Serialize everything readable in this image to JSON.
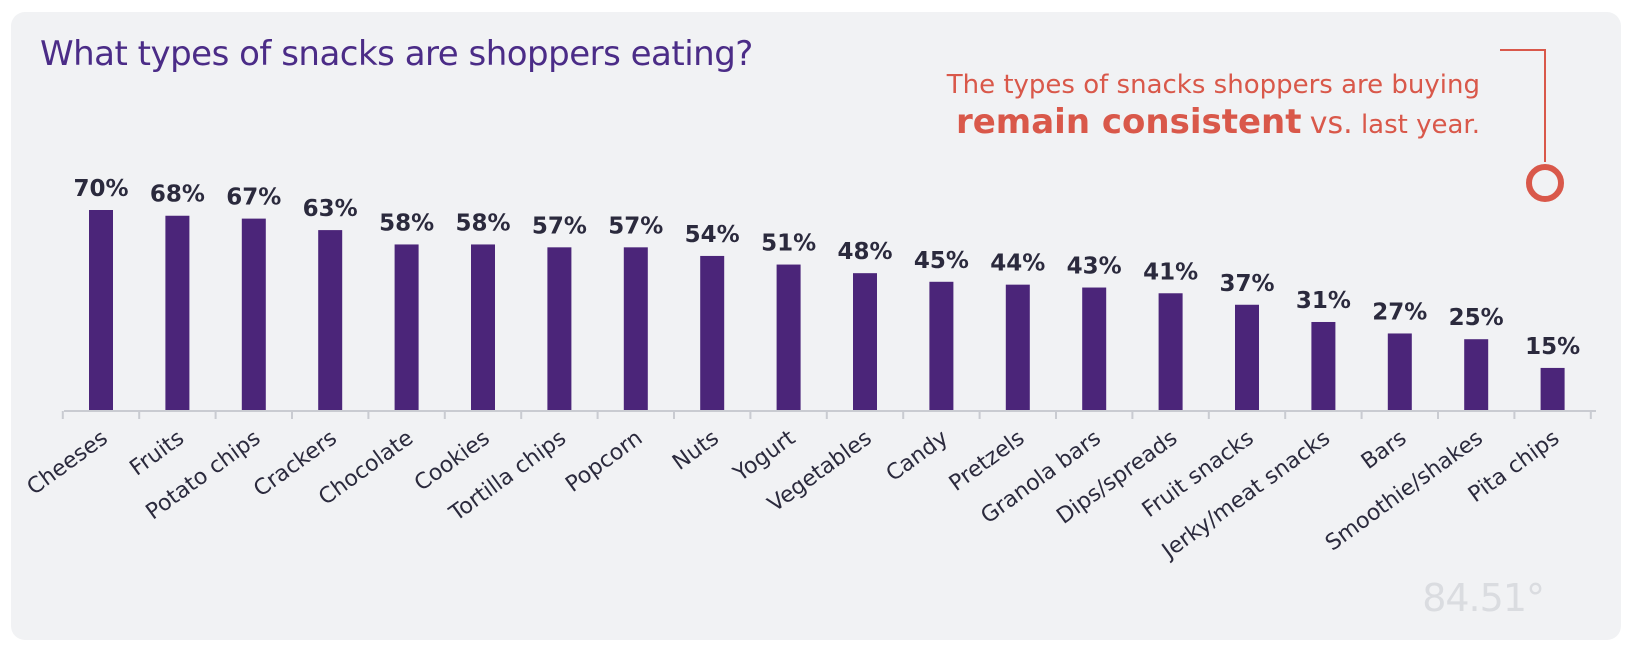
{
  "chart_data": {
    "type": "bar",
    "title": "What types of snacks are shoppers eating?",
    "categories": [
      "Cheeses",
      "Fruits",
      "Potato chips",
      "Crackers",
      "Chocolate",
      "Cookies",
      "Tortilla chips",
      "Popcorn",
      "Nuts",
      "Yogurt",
      "Vegetables",
      "Candy",
      "Pretzels",
      "Granola bars",
      "Dips/spreads",
      "Fruit snacks",
      "Jerky/meat snacks",
      "Bars",
      "Smoothie/shakes",
      "Pita chips"
    ],
    "values": [
      70,
      68,
      67,
      63,
      58,
      58,
      57,
      57,
      54,
      51,
      48,
      45,
      44,
      43,
      41,
      37,
      31,
      27,
      25,
      15
    ],
    "value_labels": [
      "70%",
      "68%",
      "67%",
      "63%",
      "58%",
      "58%",
      "57%",
      "57%",
      "54%",
      "51%",
      "48%",
      "45%",
      "44%",
      "43%",
      "41%",
      "37%",
      "31%",
      "27%",
      "25%",
      "15%"
    ],
    "ylim": [
      0,
      70
    ],
    "grid": false,
    "legend": "none",
    "bar_color": "#4b2579",
    "axis_color": "#c9cbd1"
  },
  "callout": {
    "line1": "The types of snacks shoppers are buying",
    "strong": "remain consistent",
    "vs": "vs.",
    "tail": "last year.",
    "color": "#d9584a"
  },
  "logo": {
    "text": "84.51°"
  }
}
